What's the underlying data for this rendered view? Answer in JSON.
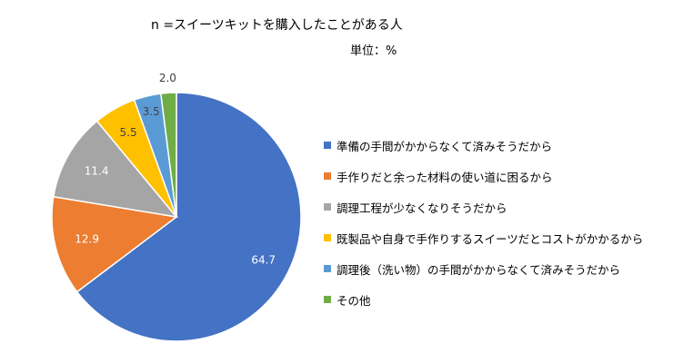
{
  "header": {
    "title": "n =スイーツキットを購入したことがある人",
    "unit": "単位：%"
  },
  "chart_data": {
    "type": "pie",
    "title": "n =スイーツキットを購入したことがある人",
    "unit": "単位：%",
    "start_angle_deg": 0,
    "direction": "clockwise",
    "legend_position": "right",
    "slices": [
      {
        "label": "準備の手間がかからなくて済みそうだから",
        "value": 64.7,
        "color": "#4472C4"
      },
      {
        "label": "手作りだと余った材料の使い道に困るから",
        "value": 12.9,
        "color": "#ED7D31"
      },
      {
        "label": "調理工程が少なくなりそうだから",
        "value": 11.4,
        "color": "#A5A5A5"
      },
      {
        "label": "既製品や自身で手作りするスイーツだとコストがかかるから",
        "value": 5.5,
        "color": "#FFC000"
      },
      {
        "label": "調理後（洗い物）の手間がかからなくて済みそうだから",
        "value": 3.5,
        "color": "#5B9BD5"
      },
      {
        "label": "その他",
        "value": 2.0,
        "color": "#70AD47"
      }
    ]
  }
}
